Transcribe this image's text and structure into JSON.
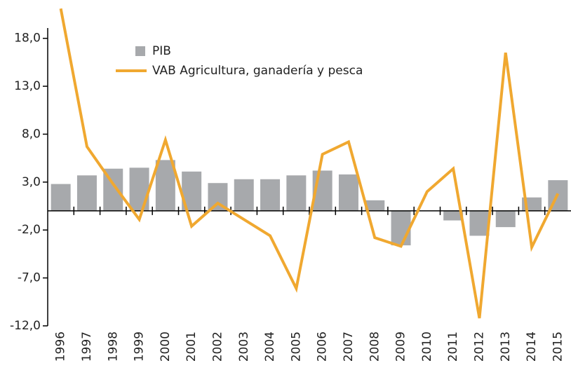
{
  "chart_data": {
    "type": "bar_line",
    "categories": [
      "1996",
      "1997",
      "1998",
      "1999",
      "2000",
      "2001",
      "2002",
      "2003",
      "2004",
      "2005",
      "2006",
      "2007",
      "2008",
      "2009",
      "2010",
      "2011",
      "2012",
      "2013",
      "2014",
      "2015"
    ],
    "series": [
      {
        "name": "PIB",
        "type": "bar",
        "color": "#a7a9ac",
        "values": [
          2.8,
          3.7,
          4.4,
          4.5,
          5.3,
          4.1,
          2.9,
          3.3,
          3.3,
          3.7,
          4.2,
          3.8,
          1.1,
          -3.6,
          0.0,
          -1.0,
          -2.6,
          -1.7,
          1.4,
          3.2
        ]
      },
      {
        "name": "VAB Agricultura, ganadería y pesca",
        "type": "line",
        "color": "#f0a830",
        "values": [
          21.1,
          6.7,
          2.8,
          -0.9,
          7.4,
          -1.6,
          0.8,
          -0.9,
          -2.6,
          -8.1,
          5.9,
          7.2,
          -2.8,
          -3.7,
          2.0,
          4.4,
          -11.2,
          16.5,
          -3.8,
          1.8
        ]
      }
    ],
    "ylim": [
      -12,
      22
    ],
    "yticks": [
      {
        "value": -12,
        "label": "-12,0"
      },
      {
        "value": -7,
        "label": "-7,0"
      },
      {
        "value": -2,
        "label": "-2,0"
      },
      {
        "value": 3,
        "label": "3,0"
      },
      {
        "value": 8,
        "label": "8,0"
      },
      {
        "value": 13,
        "label": "13,0"
      },
      {
        "value": 18,
        "label": "18,0"
      }
    ],
    "legend": "upper left",
    "grid": false
  }
}
